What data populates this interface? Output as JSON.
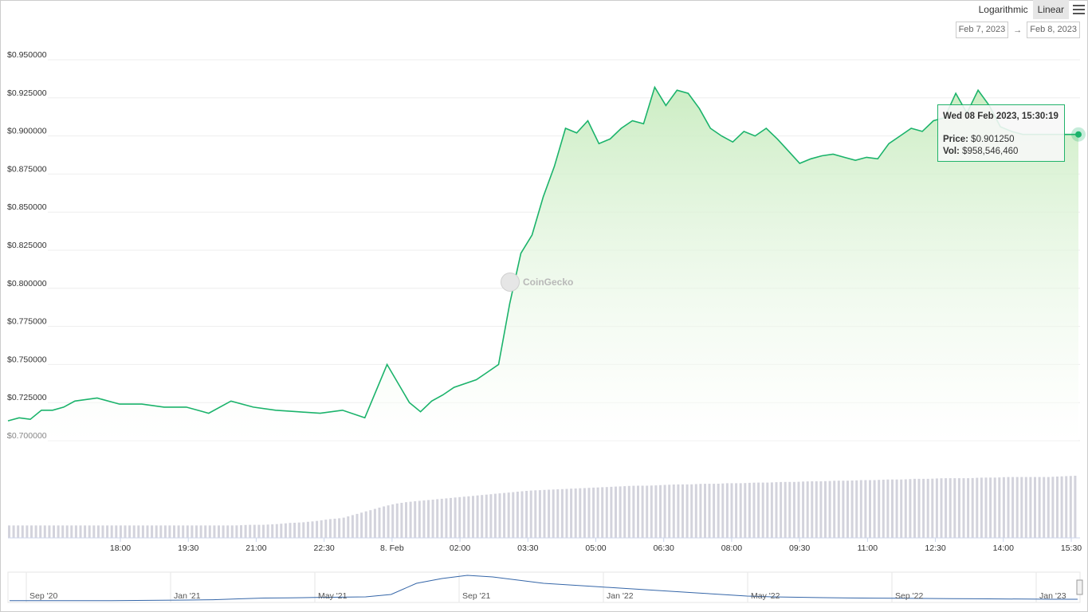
{
  "toolbar": {
    "logarithmic": "Logarithmic",
    "linear": "Linear",
    "active": "linear"
  },
  "range": {
    "from": "Feb 7, 2023",
    "arrow": "→",
    "to": "Feb 8, 2023"
  },
  "watermark": {
    "text": "CoinGecko"
  },
  "tooltip": {
    "date": "Wed 08 Feb 2023, 15:30:19",
    "price_label": "Price:",
    "price_value": "$0.901250",
    "vol_label": "Vol:",
    "vol_value": "$958,546,460"
  },
  "colors": {
    "line": "#1bb36b",
    "fill": "#d9f2d4",
    "volume": "#d3d3dc",
    "navigator": "#3566a8",
    "tooltip_border": "#21b36a"
  },
  "chart_data": {
    "type": "area",
    "y_axis": {
      "ticks": [
        "$0.950000",
        "$0.925000",
        "$0.900000",
        "$0.875000",
        "$0.850000",
        "$0.825000",
        "$0.800000",
        "$0.775000",
        "$0.750000",
        "$0.725000",
        "$0.700000"
      ],
      "ylim": [
        0.7,
        0.95
      ]
    },
    "x_axis": {
      "ticks": [
        "18:00",
        "19:30",
        "21:00",
        "22:30",
        "8. Feb",
        "02:00",
        "03:30",
        "05:00",
        "06:30",
        "08:00",
        "09:30",
        "11:00",
        "12:30",
        "14:00",
        "15:30"
      ]
    },
    "grid": true,
    "legend": "none",
    "series": [
      {
        "x_hours": [
          0,
          0.25,
          0.5,
          0.75,
          1,
          1.25,
          1.5,
          2,
          2.5,
          3,
          3.5,
          4,
          4.5,
          5,
          5.5,
          6,
          6.5,
          7,
          7.5,
          8,
          8.5,
          9,
          9.25,
          9.5,
          9.75,
          10,
          10.5,
          10.75,
          11,
          11.25,
          11.5,
          11.75,
          12,
          12.25,
          12.5,
          12.75,
          13,
          13.25,
          13.5,
          13.75,
          14,
          14.25,
          14.5,
          14.75,
          15,
          15.25,
          15.5,
          15.75,
          16,
          16.25,
          16.5,
          16.75,
          17,
          17.25,
          17.5,
          17.75,
          18,
          18.25,
          18.5,
          18.75,
          19,
          19.25,
          19.5,
          19.75,
          20,
          20.25,
          20.5,
          20.75,
          21,
          21.25,
          21.5,
          21.75,
          22,
          22.25,
          22.5,
          22.75,
          23,
          23.25,
          23.5,
          23.75,
          24
        ],
        "price": [
          0.713,
          0.715,
          0.714,
          0.72,
          0.72,
          0.722,
          0.726,
          0.728,
          0.724,
          0.724,
          0.722,
          0.722,
          0.718,
          0.726,
          0.722,
          0.72,
          0.719,
          0.718,
          0.72,
          0.715,
          0.75,
          0.725,
          0.719,
          0.726,
          0.73,
          0.735,
          0.74,
          0.745,
          0.75,
          0.79,
          0.823,
          0.835,
          0.86,
          0.88,
          0.905,
          0.902,
          0.91,
          0.895,
          0.898,
          0.905,
          0.91,
          0.908,
          0.932,
          0.92,
          0.93,
          0.928,
          0.918,
          0.905,
          0.9,
          0.896,
          0.903,
          0.9,
          0.905,
          0.898,
          0.89,
          0.882,
          0.885,
          0.887,
          0.888,
          0.886,
          0.884,
          0.886,
          0.885,
          0.895,
          0.9,
          0.905,
          0.903,
          0.91,
          0.912,
          0.928,
          0.915,
          0.93,
          0.92,
          0.906,
          0.903,
          0.901,
          0.901,
          0.901,
          0.901,
          0.901,
          0.901
        ],
        "volume_relative": [
          0.2,
          0.2,
          0.2,
          0.2,
          0.2,
          0.2,
          0.2,
          0.2,
          0.2,
          0.2,
          0.2,
          0.2,
          0.2,
          0.2,
          0.2,
          0.2,
          0.2,
          0.2,
          0.21,
          0.21,
          0.22,
          0.24,
          0.25,
          0.27,
          0.3,
          0.32,
          0.38,
          0.44,
          0.5,
          0.55,
          0.58,
          0.6,
          0.62,
          0.64,
          0.66,
          0.68,
          0.7,
          0.72,
          0.74,
          0.76,
          0.77,
          0.78,
          0.79,
          0.8,
          0.81,
          0.82,
          0.83,
          0.84,
          0.84,
          0.85,
          0.86,
          0.86,
          0.87,
          0.87,
          0.88,
          0.88,
          0.89,
          0.89,
          0.9,
          0.9,
          0.91,
          0.91,
          0.92,
          0.92,
          0.93,
          0.93,
          0.94,
          0.94,
          0.95,
          0.95,
          0.96,
          0.96,
          0.96,
          0.97,
          0.97,
          0.98,
          0.98,
          0.98,
          0.98,
          0.99,
          1.0
        ]
      }
    ],
    "navigator": {
      "ticks": [
        "Sep '20",
        "Jan '21",
        "May '21",
        "Sep '21",
        "Jan '22",
        "May '22",
        "Sep '22",
        "Jan '23"
      ]
    }
  }
}
